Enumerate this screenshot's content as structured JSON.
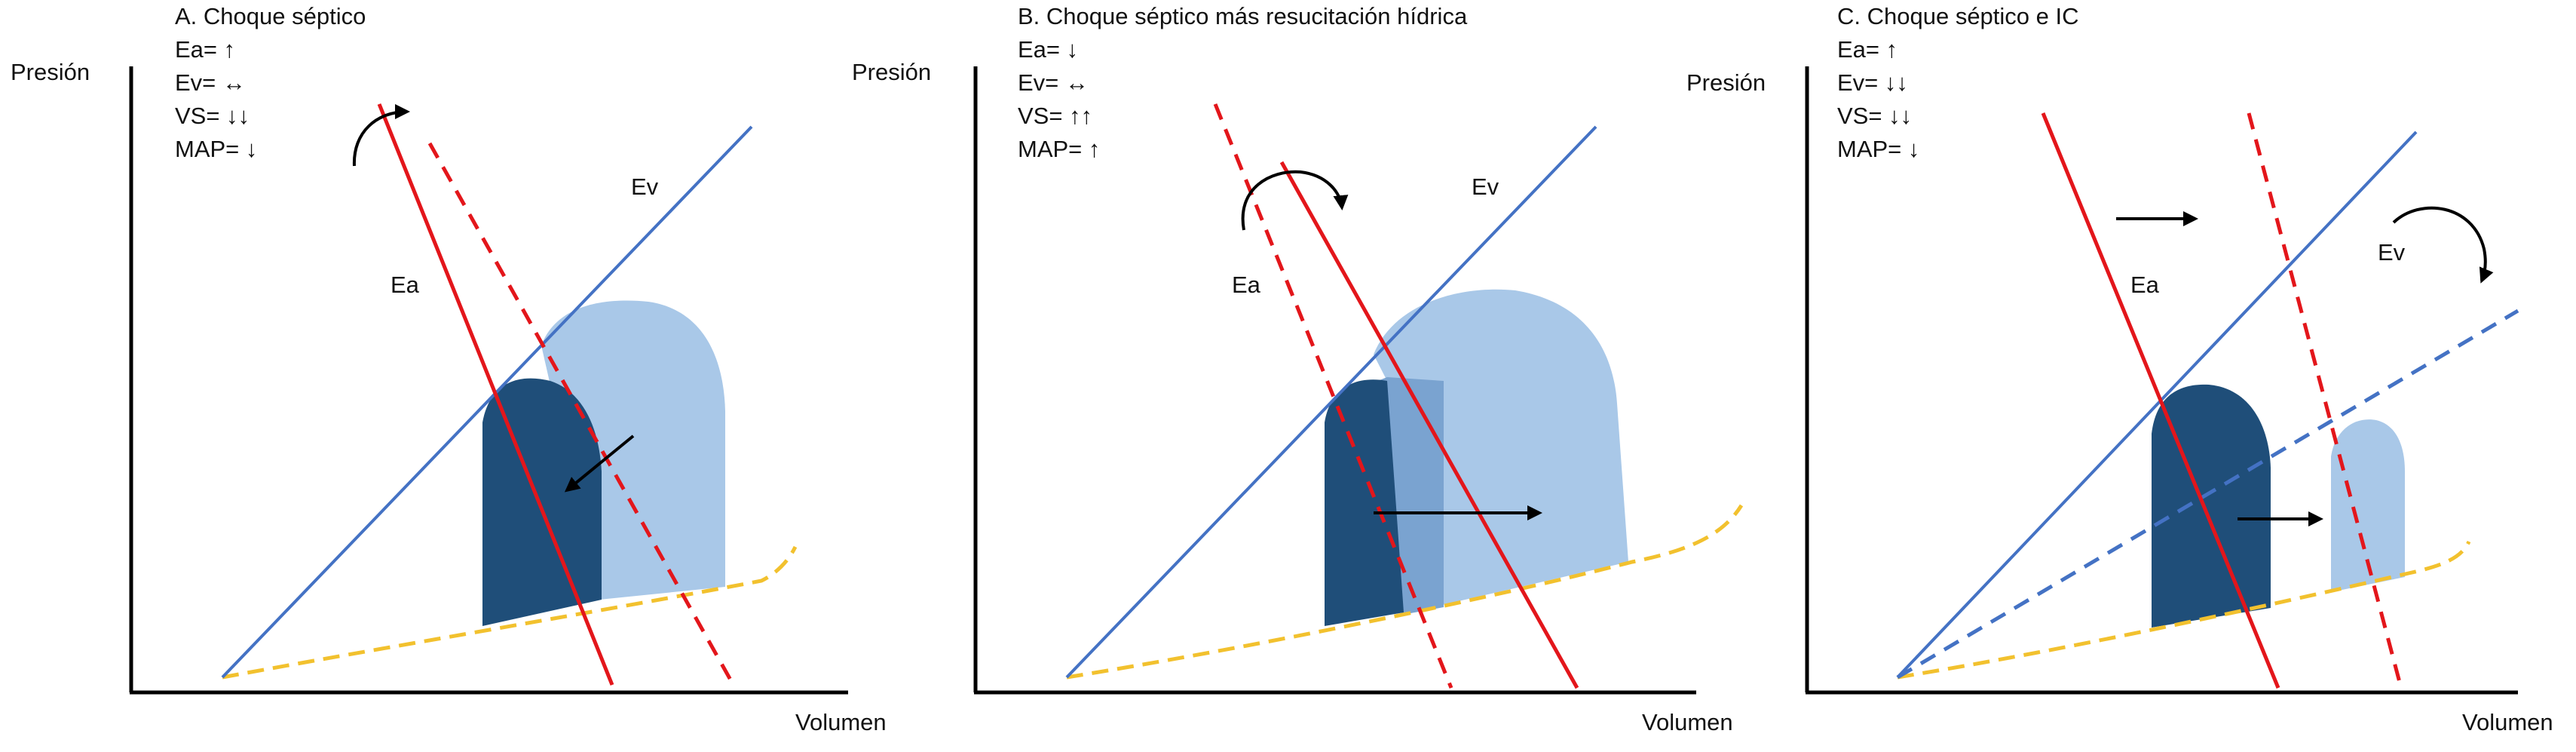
{
  "panels": [
    {
      "id": "a",
      "title": "A. Choque séptico",
      "stats": [
        "Ea= ↑",
        "Ev= ↔",
        "VS= ↓↓",
        "MAP= ↓"
      ],
      "y_axis_label": "Presión",
      "x_axis_label": "Volumen",
      "ea_label": "Ea",
      "ev_label": "Ev"
    },
    {
      "id": "b",
      "title": "B. Choque séptico más resucitación hídrica",
      "stats": [
        "Ea= ↓",
        "Ev= ↔",
        "VS= ↑↑",
        "MAP= ↑"
      ],
      "y_axis_label": "Presión",
      "x_axis_label": "Volumen",
      "ea_label": "Ea",
      "ev_label": "Ev"
    },
    {
      "id": "c",
      "title": "C. Choque séptico e IC",
      "stats": [
        "Ea= ↑",
        "Ev= ↓↓",
        "VS= ↓↓",
        "MAP= ↓"
      ],
      "y_axis_label": "Presión",
      "x_axis_label": "Volumen",
      "ea_label": "Ea",
      "ev_label": "Ev"
    }
  ],
  "colors": {
    "ea_line": "#e3161b",
    "ev_line": "#4472c4",
    "edpvr": "#f2c12e",
    "loop_dark": "#1f4e79",
    "loop_light": "#a9c8e8",
    "loop_mid": "#7aa3d0",
    "arrow": "#000000"
  }
}
